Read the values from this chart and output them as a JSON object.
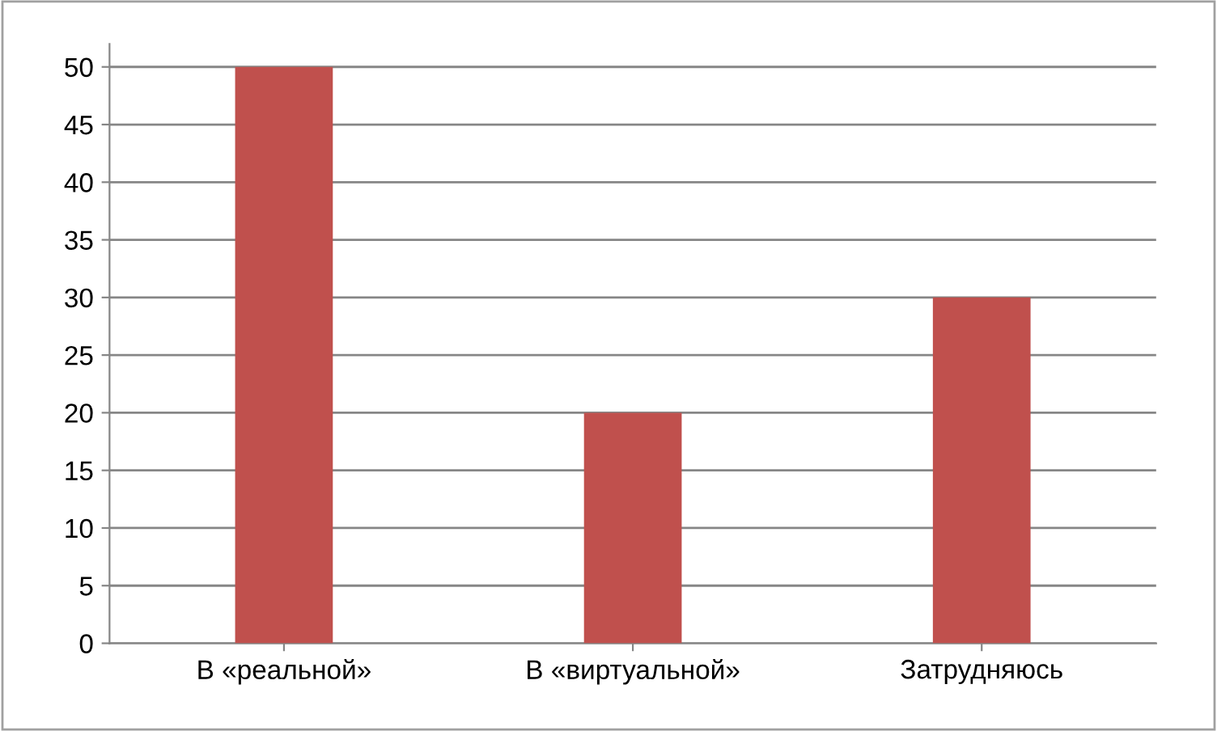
{
  "chart_data": {
    "type": "bar",
    "categories": [
      "В «реальной»",
      "В «виртуальной»",
      "Затрудняюсь"
    ],
    "values": [
      50,
      20,
      30
    ],
    "color": "#c0504d",
    "ylim": [
      0,
      52
    ],
    "yticks": [
      0,
      5,
      10,
      15,
      20,
      25,
      30,
      35,
      40,
      45,
      50
    ],
    "grid": "y"
  }
}
